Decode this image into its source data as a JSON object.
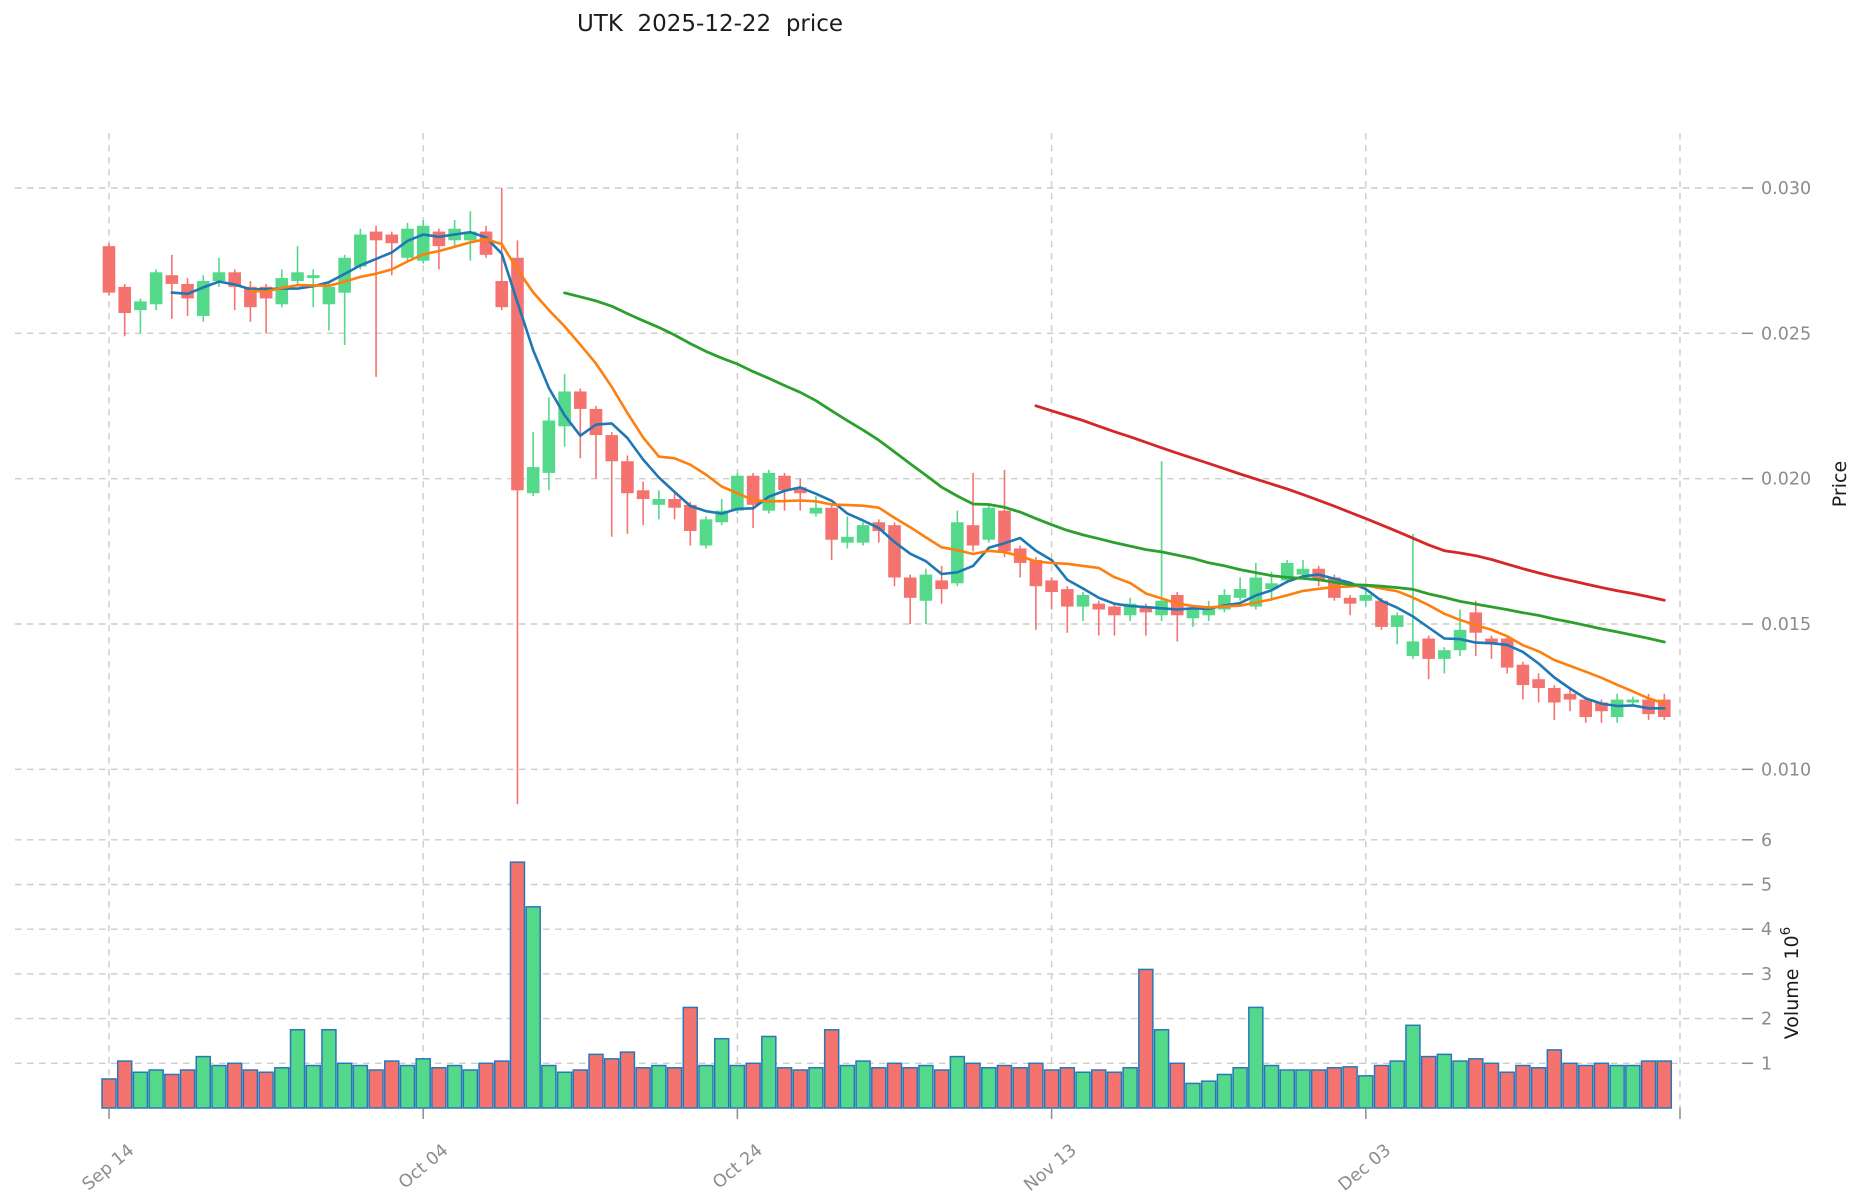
{
  "title": "UTK  2025-12-22  price",
  "axes": {
    "price_label": "Price",
    "volume_label": "Volume",
    "volume_unit_base": "10",
    "volume_unit_exp": "6",
    "price_tick_labels": [
      "0.030",
      "0.025",
      "0.020",
      "0.015",
      "0.010"
    ],
    "price_tick_values": [
      0.03,
      0.025,
      0.02,
      0.015,
      0.01
    ],
    "volume_tick_labels": [
      "6",
      "5",
      "4",
      "3",
      "2",
      "1"
    ],
    "volume_tick_values": [
      6,
      5,
      4,
      3,
      2,
      1
    ],
    "x_ticks": [
      {
        "index": 0,
        "label": "Sep 14"
      },
      {
        "index": 20,
        "label": "Oct 04"
      },
      {
        "index": 40,
        "label": "Oct 24"
      },
      {
        "index": 60,
        "label": "Nov 13"
      },
      {
        "index": 80,
        "label": "Dec 03"
      },
      {
        "index": 100,
        "label": ""
      }
    ]
  },
  "chart_data": {
    "type": "candlestick",
    "symbol": "UTK",
    "as_of_date": "2025-12-22",
    "first_candle_tick_label": "Sep 14",
    "grid": true,
    "legend_position": "none",
    "price_axis_range_gridlines": [
      0.01,
      0.03
    ],
    "volume_axis_unit": "10^6",
    "colors": {
      "up": "#54d88a",
      "down": "#f4736e",
      "volume_edge": "#2878b8",
      "sma5": "#1f77b4",
      "sma10": "#ff7f0e",
      "sma30": "#2ca02c",
      "sma60": "#d62728",
      "grid": "#cccccc",
      "tick_text": "#8c8c8c",
      "title_text": "#1c1c1c"
    },
    "moving_averages": [
      {
        "name": "SMA5",
        "window": 5,
        "color_key": "sma5"
      },
      {
        "name": "SMA10",
        "window": 10,
        "color_key": "sma10"
      },
      {
        "name": "SMA30",
        "window": 30,
        "color_key": "sma30"
      },
      {
        "name": "SMA60",
        "window": 60,
        "color_key": "sma60"
      }
    ],
    "candles": {
      "open": [
        0.028,
        0.0266,
        0.0258,
        0.026,
        0.027,
        0.0267,
        0.0256,
        0.0268,
        0.0271,
        0.0266,
        0.0266,
        0.026,
        0.0268,
        0.0269,
        0.026,
        0.0264,
        0.0273,
        0.0285,
        0.0284,
        0.0276,
        0.0275,
        0.0285,
        0.0282,
        0.0282,
        0.0285,
        0.0268,
        0.0276,
        0.0195,
        0.0202,
        0.0218,
        0.023,
        0.0224,
        0.0215,
        0.0206,
        0.0196,
        0.0191,
        0.0193,
        0.0191,
        0.0177,
        0.0185,
        0.0189,
        0.0201,
        0.0189,
        0.0201,
        0.0197,
        0.0188,
        0.019,
        0.0178,
        0.0178,
        0.0185,
        0.0184,
        0.0166,
        0.0158,
        0.0165,
        0.0164,
        0.0184,
        0.0179,
        0.0189,
        0.0176,
        0.0172,
        0.0165,
        0.0162,
        0.0156,
        0.0157,
        0.0156,
        0.0153,
        0.0156,
        0.0153,
        0.016,
        0.0152,
        0.0153,
        0.0155,
        0.0159,
        0.0156,
        0.0162,
        0.0165,
        0.0167,
        0.0169,
        0.0166,
        0.0159,
        0.0158,
        0.0158,
        0.0149,
        0.0139,
        0.0145,
        0.0138,
        0.0141,
        0.0154,
        0.0145,
        0.0145,
        0.0136,
        0.0131,
        0.0128,
        0.0126,
        0.0124,
        0.0123,
        0.0118,
        0.0123,
        0.0124,
        0.0124
      ],
      "high": [
        0.0281,
        0.0267,
        0.0262,
        0.0272,
        0.0277,
        0.0269,
        0.027,
        0.0276,
        0.0272,
        0.0268,
        0.0267,
        0.0272,
        0.028,
        0.0272,
        0.0268,
        0.0277,
        0.0286,
        0.0287,
        0.0285,
        0.0288,
        0.0289,
        0.0286,
        0.0289,
        0.0292,
        0.0287,
        0.03,
        0.0282,
        0.0216,
        0.0228,
        0.0236,
        0.0231,
        0.0225,
        0.0216,
        0.0208,
        0.0199,
        0.0196,
        0.0195,
        0.0192,
        0.0187,
        0.0193,
        0.0202,
        0.0202,
        0.0203,
        0.0202,
        0.02,
        0.0194,
        0.0191,
        0.0187,
        0.0185,
        0.0186,
        0.0185,
        0.0167,
        0.0169,
        0.017,
        0.0189,
        0.0202,
        0.0191,
        0.0203,
        0.0177,
        0.0173,
        0.0166,
        0.0163,
        0.0161,
        0.0158,
        0.0157,
        0.0159,
        0.0157,
        0.0206,
        0.0161,
        0.0156,
        0.0158,
        0.0162,
        0.0166,
        0.0171,
        0.0168,
        0.0172,
        0.0172,
        0.017,
        0.0167,
        0.016,
        0.0163,
        0.0159,
        0.0154,
        0.0181,
        0.0146,
        0.0142,
        0.0155,
        0.0158,
        0.0146,
        0.0146,
        0.0137,
        0.0133,
        0.0129,
        0.0128,
        0.0125,
        0.0124,
        0.0126,
        0.0125,
        0.0126,
        0.0126
      ],
      "low": [
        0.0263,
        0.0249,
        0.025,
        0.0258,
        0.0255,
        0.0256,
        0.0254,
        0.0266,
        0.0258,
        0.0254,
        0.025,
        0.0259,
        0.0267,
        0.0259,
        0.0251,
        0.0246,
        0.0272,
        0.0235,
        0.027,
        0.0275,
        0.0274,
        0.0272,
        0.028,
        0.0275,
        0.0276,
        0.0258,
        0.0088,
        0.0194,
        0.0196,
        0.0211,
        0.0207,
        0.02,
        0.018,
        0.0181,
        0.0184,
        0.0186,
        0.0186,
        0.0177,
        0.0176,
        0.0184,
        0.0188,
        0.0183,
        0.0188,
        0.0189,
        0.0189,
        0.0187,
        0.0172,
        0.0176,
        0.0177,
        0.0178,
        0.0163,
        0.015,
        0.015,
        0.0157,
        0.0163,
        0.0175,
        0.0178,
        0.0173,
        0.0166,
        0.0148,
        0.0155,
        0.0147,
        0.0151,
        0.0146,
        0.0146,
        0.0151,
        0.0146,
        0.0151,
        0.0144,
        0.0149,
        0.0151,
        0.0154,
        0.0158,
        0.0155,
        0.0158,
        0.0164,
        0.0166,
        0.0163,
        0.0158,
        0.0153,
        0.0156,
        0.0148,
        0.0143,
        0.0138,
        0.0131,
        0.0133,
        0.0139,
        0.0139,
        0.0138,
        0.0133,
        0.0124,
        0.0123,
        0.0117,
        0.012,
        0.0116,
        0.0116,
        0.0116,
        0.0122,
        0.0117,
        0.0117
      ],
      "close": [
        0.0264,
        0.0257,
        0.0261,
        0.0271,
        0.0267,
        0.0262,
        0.0268,
        0.0271,
        0.0266,
        0.0259,
        0.0262,
        0.0269,
        0.0271,
        0.027,
        0.0266,
        0.0276,
        0.0284,
        0.0282,
        0.0281,
        0.0286,
        0.0287,
        0.028,
        0.0286,
        0.0285,
        0.0277,
        0.0259,
        0.0196,
        0.0204,
        0.022,
        0.023,
        0.0224,
        0.0215,
        0.0206,
        0.0195,
        0.0193,
        0.0193,
        0.019,
        0.0182,
        0.0186,
        0.0189,
        0.0201,
        0.0191,
        0.0202,
        0.0196,
        0.0195,
        0.019,
        0.0179,
        0.018,
        0.0184,
        0.0182,
        0.0166,
        0.0159,
        0.0167,
        0.0162,
        0.0185,
        0.0177,
        0.019,
        0.0175,
        0.0171,
        0.0163,
        0.0161,
        0.0156,
        0.016,
        0.0155,
        0.0153,
        0.0157,
        0.0154,
        0.0158,
        0.0153,
        0.0155,
        0.0156,
        0.016,
        0.0162,
        0.0166,
        0.0164,
        0.0171,
        0.0169,
        0.0165,
        0.0159,
        0.0157,
        0.016,
        0.0149,
        0.0153,
        0.0144,
        0.0138,
        0.0141,
        0.0148,
        0.0147,
        0.0143,
        0.0135,
        0.0129,
        0.0128,
        0.0123,
        0.0124,
        0.0118,
        0.012,
        0.0124,
        0.0124,
        0.0119,
        0.0118
      ],
      "volume_millions": [
        0.65,
        1.05,
        0.8,
        0.85,
        0.75,
        0.85,
        1.15,
        0.95,
        1.0,
        0.85,
        0.8,
        0.9,
        1.75,
        0.95,
        1.75,
        1.0,
        0.95,
        0.85,
        1.05,
        0.95,
        1.1,
        0.9,
        0.95,
        0.85,
        1.0,
        1.05,
        5.5,
        4.5,
        0.95,
        0.8,
        0.85,
        1.2,
        1.1,
        1.25,
        0.9,
        0.95,
        0.9,
        2.25,
        0.95,
        1.55,
        0.95,
        1.0,
        1.6,
        0.9,
        0.85,
        0.9,
        1.75,
        0.95,
        1.05,
        0.9,
        1.0,
        0.9,
        0.95,
        0.85,
        1.15,
        1.0,
        0.9,
        0.95,
        0.9,
        1.0,
        0.85,
        0.9,
        0.8,
        0.85,
        0.8,
        0.9,
        3.1,
        1.75,
        1.0,
        0.55,
        0.6,
        0.75,
        0.9,
        2.25,
        0.95,
        0.85,
        0.85,
        0.85,
        0.9,
        0.92,
        0.72,
        0.95,
        1.05,
        1.85,
        1.15,
        1.2,
        1.05,
        1.1,
        1.0,
        0.8,
        0.95,
        0.9,
        1.3,
        1.0,
        0.95,
        1.0,
        0.95,
        0.95,
        1.05,
        1.05
      ]
    }
  }
}
